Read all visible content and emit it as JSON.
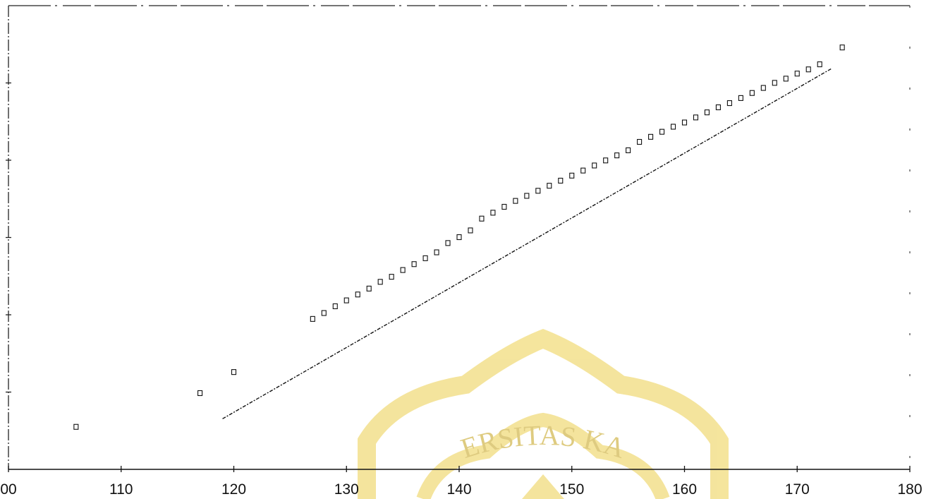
{
  "chart_data": {
    "type": "scatter",
    "title": "",
    "xlabel": "",
    "ylabel": "",
    "xlim": [
      100,
      180
    ],
    "x_tick_labels": [
      "00",
      "110",
      "120",
      "130",
      "140",
      "150",
      "160",
      "170",
      "180"
    ],
    "y_tick_labels": [],
    "grid": false,
    "legend": "none",
    "series": [
      {
        "style": "square-markers",
        "x": [
          106,
          117,
          120,
          127,
          128,
          129,
          130,
          131,
          132,
          133,
          134,
          135,
          136,
          137,
          138,
          139,
          140,
          141,
          142,
          143,
          144,
          145,
          146,
          147,
          148,
          149,
          150,
          151,
          152,
          153,
          154,
          155,
          156,
          157,
          158,
          159,
          160,
          161,
          162,
          163,
          164,
          165,
          166,
          167,
          168,
          169,
          170,
          171,
          172,
          174
        ],
        "y": [
          0.05,
          0.09,
          0.115,
          0.178,
          0.185,
          0.193,
          0.2,
          0.207,
          0.214,
          0.222,
          0.228,
          0.236,
          0.243,
          0.25,
          0.257,
          0.268,
          0.275,
          0.283,
          0.297,
          0.304,
          0.311,
          0.318,
          0.324,
          0.33,
          0.336,
          0.342,
          0.348,
          0.354,
          0.36,
          0.366,
          0.372,
          0.378,
          0.388,
          0.394,
          0.4,
          0.406,
          0.411,
          0.417,
          0.423,
          0.429,
          0.434,
          0.44,
          0.446,
          0.452,
          0.458,
          0.463,
          0.469,
          0.474,
          0.48,
          0.5
        ]
      },
      {
        "style": "dotted-fit-line",
        "x": [
          119,
          173
        ],
        "y": [
          0.06,
          0.475
        ]
      }
    ],
    "ylim": [
      0,
      0.55
    ]
  },
  "watermark": {
    "text": "ERSITAS KA",
    "color": "#f0dc8a"
  }
}
